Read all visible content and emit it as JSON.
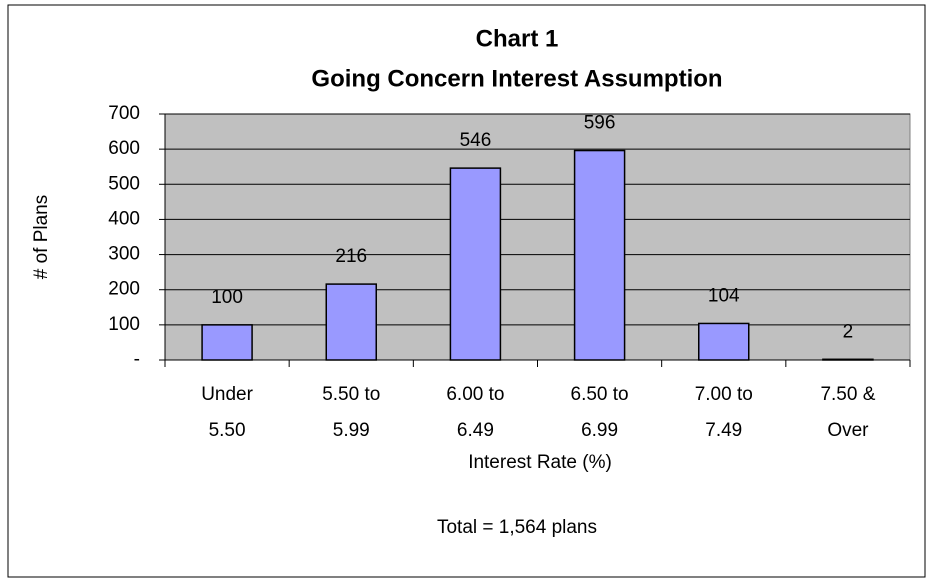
{
  "chart_data": {
    "type": "bar",
    "title": "Chart 1",
    "subtitle": "Going Concern Interest Assumption",
    "x_label": "Interest Rate (%)",
    "y_label": "# of Plans",
    "annotation": "Total = 1,564 plans",
    "categories": [
      [
        "Under",
        "5.50"
      ],
      [
        "5.50 to",
        "5.99"
      ],
      [
        "6.00 to",
        "6.49"
      ],
      [
        "6.50 to",
        "6.99"
      ],
      [
        "7.00 to",
        "7.49"
      ],
      [
        "7.50 &",
        "Over"
      ]
    ],
    "values": [
      100,
      216,
      546,
      596,
      104,
      2
    ],
    "color": "#9999ff",
    "ylim": [
      0,
      700
    ],
    "yticks": [
      {
        "value": 0,
        "label": "-"
      },
      100,
      200,
      300,
      400,
      500,
      600,
      700
    ],
    "grid": true
  }
}
